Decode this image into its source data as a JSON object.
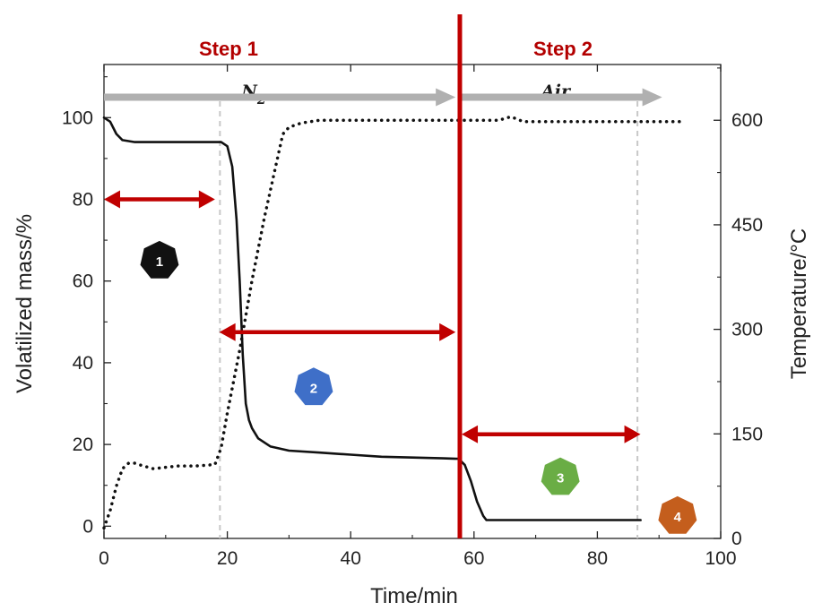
{
  "chart_data": {
    "type": "line",
    "title": "",
    "xlabel": "Time/min",
    "ylabel": "Volatilized mass/%",
    "y2label": "Temperature/°C",
    "xlim": [
      0,
      100
    ],
    "ylim": [
      -3,
      113
    ],
    "y2lim": [
      0,
      680
    ],
    "x_ticks": [
      0,
      20,
      40,
      60,
      80,
      100
    ],
    "y_ticks": [
      0,
      20,
      40,
      60,
      80,
      100
    ],
    "y2_ticks": [
      0,
      150,
      300,
      450,
      600
    ],
    "grid": false,
    "series": [
      {
        "role": "mass",
        "axis": "left",
        "style": "solid",
        "color": "#111111",
        "x": [
          0,
          1,
          2,
          3,
          5,
          10,
          15,
          19,
          20,
          20.8,
          21.5,
          22,
          22.5,
          23,
          23.5,
          24,
          25,
          27,
          30,
          35,
          40,
          45,
          50,
          55,
          57.5,
          58.5,
          59.5,
          60.5,
          61.5,
          62,
          65,
          70,
          80,
          87
        ],
        "values": [
          100,
          99,
          96,
          94.5,
          94,
          94,
          94,
          94,
          93,
          88,
          75,
          60,
          42,
          30,
          26,
          24,
          21.5,
          19.5,
          18.5,
          18,
          17.5,
          17,
          16.8,
          16.6,
          16.5,
          15,
          11,
          6,
          2.5,
          1.5,
          1.5,
          1.5,
          1.5,
          1.5
        ]
      },
      {
        "role": "temperature",
        "axis": "right",
        "style": "dotted",
        "color": "#111111",
        "x": [
          0,
          1,
          2,
          3,
          4,
          5,
          6,
          8,
          10,
          12,
          15,
          18,
          19,
          20,
          22,
          24,
          26,
          28,
          29,
          30,
          32,
          35,
          40,
          50,
          60,
          64,
          66,
          68,
          70,
          80,
          90,
          94
        ],
        "values": [
          15,
          40,
          75,
          100,
          108,
          108,
          105,
          100,
          102,
          104,
          104,
          106,
          130,
          180,
          270,
          370,
          460,
          540,
          580,
          590,
          596,
          600,
          600,
          600,
          600,
          600,
          605,
          598,
          598,
          598,
          598,
          598
        ]
      }
    ],
    "annotations": {
      "steps": [
        {
          "label": "Step 1",
          "x": 20
        },
        {
          "label": "Step 2",
          "x": 75
        }
      ],
      "phase_divider_x": 57.7,
      "dashed_guides_x": [
        18.8,
        86.5
      ],
      "atmosphere_arrows": [
        {
          "label": "N",
          "subscript": "2",
          "x_start": 0,
          "x_end": 57,
          "y": 105
        },
        {
          "label": "Air",
          "x_start": 57.8,
          "x_end": 90.5,
          "y": 105
        }
      ],
      "stage_arrows": [
        {
          "x_start": 0,
          "x_end": 18,
          "y": 80
        },
        {
          "x_start": 18.7,
          "x_end": 57,
          "y": 47.5
        },
        {
          "x_start": 58,
          "x_end": 87,
          "y": 22.5
        }
      ],
      "badges": [
        {
          "label": "1",
          "x": 9,
          "y": 65,
          "color": "#111111"
        },
        {
          "label": "2",
          "x": 34,
          "y": 34,
          "color": "#3f6fc8"
        },
        {
          "label": "3",
          "x": 74,
          "y": 12,
          "color": "#6aad45"
        },
        {
          "label": "4",
          "x": 93,
          "y": 2.5,
          "color": "#c45e1d"
        }
      ]
    }
  }
}
